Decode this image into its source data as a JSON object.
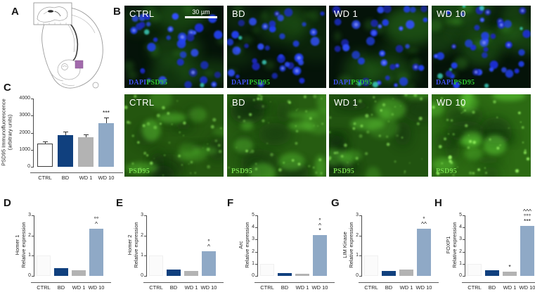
{
  "panelA": {
    "label": "A",
    "marker_color": "#a26aac"
  },
  "panelB": {
    "label": "B",
    "columns": [
      "CTRL",
      "BD",
      "WD 1",
      "WD 10"
    ],
    "scale_bar_text": "30 µm",
    "top_stains": [
      {
        "text": "DAPI",
        "color": "#4150ee"
      },
      {
        "text": "PSD95",
        "color": "#2fc32f"
      }
    ],
    "bottom_stain": {
      "text": "PSD95",
      "color": "#74d84b"
    }
  },
  "bar_palette": [
    "#ffffff",
    "#10407e",
    "#b3b3b3",
    "#8fa9c6"
  ],
  "chart_data": [
    {
      "panel": "C",
      "type": "bar",
      "ylabel_lines": [
        "PSD95  Immunofluorescence",
        "(arbitrary units)"
      ],
      "categories": [
        "CTRL",
        "BD",
        "WD 1",
        "WD 10"
      ],
      "values": [
        1350,
        1850,
        1750,
        2550
      ],
      "errors_plus": [
        150,
        230,
        150,
        350
      ],
      "ylim": [
        0,
        4000
      ],
      "yticks": [
        0,
        1000,
        2000,
        3000,
        4000
      ],
      "annotations": [
        {
          "category": "WD 10",
          "lines": [
            "***"
          ]
        }
      ],
      "legend": "none",
      "grid": "off"
    },
    {
      "panel": "D",
      "type": "bar",
      "ylabel_lines": [
        "Homer 1",
        "Relative expression"
      ],
      "categories": [
        "CTRL",
        "BD",
        "WD 1",
        "WD 10"
      ],
      "values": [
        1.0,
        0.38,
        0.27,
        2.33
      ],
      "ylim": [
        0,
        3
      ],
      "yticks": [
        0,
        1,
        2,
        3
      ],
      "annotations": [
        {
          "category": "WD 10",
          "lines": [
            "°°",
            "^"
          ]
        }
      ],
      "legend": "none",
      "grid": "off"
    },
    {
      "panel": "E",
      "type": "bar",
      "ylabel_lines": [
        "Homer 2",
        "Relative expression"
      ],
      "categories": [
        "CTRL",
        "BD",
        "WD 1",
        "WD 10"
      ],
      "values": [
        1.0,
        0.3,
        0.26,
        1.22
      ],
      "ylim": [
        0,
        3
      ],
      "yticks": [
        0,
        1,
        2,
        3
      ],
      "annotations": [
        {
          "category": "WD 10",
          "lines": [
            "°",
            "^"
          ]
        }
      ],
      "legend": "none",
      "grid": "off"
    },
    {
      "panel": "F",
      "type": "bar",
      "ylabel_lines": [
        "Arc",
        "Relative expression"
      ],
      "categories": [
        "CTRL",
        "BD",
        "WD 1",
        "WD 10"
      ],
      "values": [
        1.0,
        0.25,
        0.15,
        3.4
      ],
      "ylim": [
        0,
        5
      ],
      "yticks": [
        0,
        1,
        2,
        3,
        4,
        5
      ],
      "annotations": [
        {
          "category": "WD 10",
          "lines": [
            "°",
            "^",
            "*"
          ]
        }
      ],
      "legend": "none",
      "grid": "off"
    },
    {
      "panel": "G",
      "type": "bar",
      "ylabel_lines": [
        "LIM Kinase",
        "Relative expression"
      ],
      "categories": [
        "CTRL",
        "BD",
        "WD 1",
        "WD 10"
      ],
      "values": [
        1.0,
        0.24,
        0.31,
        2.33
      ],
      "ylim": [
        0,
        3
      ],
      "yticks": [
        0,
        1,
        2,
        3
      ],
      "annotations": [
        {
          "category": "WD 10",
          "lines": [
            "°",
            "^^"
          ]
        }
      ],
      "legend": "none",
      "grid": "off"
    },
    {
      "panel": "H",
      "type": "bar",
      "ylabel_lines": [
        "FOXP1",
        "Relative expression"
      ],
      "categories": [
        "CTRL",
        "BD",
        "WD 1",
        "WD 10"
      ],
      "values": [
        1.0,
        0.48,
        0.32,
        4.1
      ],
      "ylim": [
        0,
        5
      ],
      "yticks": [
        0,
        1,
        2,
        3,
        4,
        5
      ],
      "annotations": [
        {
          "category": "WD 1",
          "lines": [
            "*"
          ]
        },
        {
          "category": "WD 10",
          "lines": [
            "^^^",
            "°°°",
            "***"
          ]
        }
      ],
      "legend": "none",
      "grid": "off"
    }
  ]
}
